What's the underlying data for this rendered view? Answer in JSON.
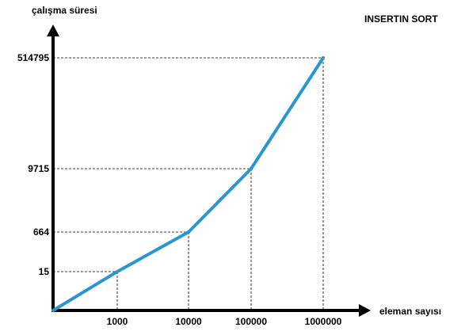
{
  "chart_data": {
    "type": "line",
    "title": "INSERTIN SORT",
    "xlabel": "eleman sayısı",
    "ylabel": "çalışma süresi",
    "categories": [
      "1000",
      "10000",
      "100000",
      "1000000"
    ],
    "y_ticks": [
      "15",
      "664",
      "9715",
      "514795"
    ],
    "series": [
      {
        "x": [
          1000,
          10000,
          100000,
          1000000
        ],
        "values": [
          15,
          664,
          9715,
          514795
        ]
      }
    ],
    "origin_included": true,
    "grid": false,
    "guide_lines": "dashed",
    "legend": "none"
  },
  "colors": {
    "line": "#2a95d4",
    "axis": "#000000",
    "text": "#000000"
  }
}
